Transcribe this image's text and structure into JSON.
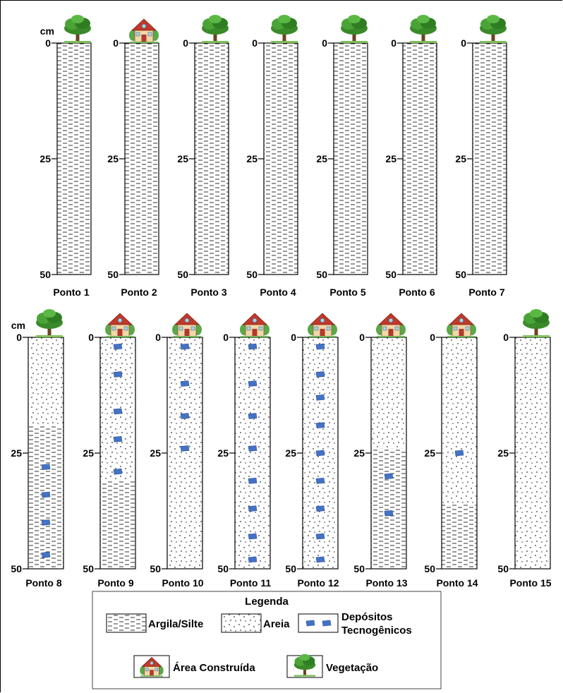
{
  "unit_label": "cm",
  "depth_ticks": [
    "0",
    "25",
    "50"
  ],
  "top_row": [
    {
      "name": "Ponto 1",
      "cover": "tree",
      "layers": [
        {
          "type": "argila",
          "from": 0,
          "to": 50
        }
      ],
      "tecno": []
    },
    {
      "name": "Ponto 2",
      "cover": "house",
      "layers": [
        {
          "type": "argila",
          "from": 0,
          "to": 50
        }
      ],
      "tecno": []
    },
    {
      "name": "Ponto 3",
      "cover": "tree",
      "layers": [
        {
          "type": "argila",
          "from": 0,
          "to": 50
        }
      ],
      "tecno": []
    },
    {
      "name": "Ponto 4",
      "cover": "tree",
      "layers": [
        {
          "type": "argila",
          "from": 0,
          "to": 50
        }
      ],
      "tecno": []
    },
    {
      "name": "Ponto 5",
      "cover": "tree",
      "layers": [
        {
          "type": "argila",
          "from": 0,
          "to": 50
        }
      ],
      "tecno": []
    },
    {
      "name": "Ponto 6",
      "cover": "tree",
      "layers": [
        {
          "type": "argila",
          "from": 0,
          "to": 50
        }
      ],
      "tecno": []
    },
    {
      "name": "Ponto 7",
      "cover": "tree",
      "layers": [
        {
          "type": "argila",
          "from": 0,
          "to": 50
        }
      ],
      "tecno": []
    }
  ],
  "bottom_row": [
    {
      "name": "Ponto 8",
      "cover": "tree",
      "layers": [
        {
          "type": "areia",
          "from": 0,
          "to": 19
        },
        {
          "type": "argila",
          "from": 19,
          "to": 50
        }
      ],
      "tecno": [
        28,
        34,
        40,
        47
      ]
    },
    {
      "name": "Ponto 9",
      "cover": "house",
      "layers": [
        {
          "type": "areia",
          "from": 0,
          "to": 31
        },
        {
          "type": "argila",
          "from": 31,
          "to": 50
        }
      ],
      "tecno": [
        2,
        8,
        16,
        22,
        29
      ]
    },
    {
      "name": "Ponto 10",
      "cover": "house",
      "layers": [
        {
          "type": "areia",
          "from": 0,
          "to": 50
        }
      ],
      "tecno": [
        2,
        10,
        17,
        24
      ]
    },
    {
      "name": "Ponto 11",
      "cover": "house",
      "layers": [
        {
          "type": "areia",
          "from": 0,
          "to": 50
        }
      ],
      "tecno": [
        2,
        10,
        17,
        24,
        31,
        37,
        43,
        48
      ]
    },
    {
      "name": "Ponto 12",
      "cover": "house",
      "layers": [
        {
          "type": "areia",
          "from": 0,
          "to": 50
        }
      ],
      "tecno": [
        2,
        8,
        13,
        19,
        25,
        31,
        37,
        43,
        48
      ]
    },
    {
      "name": "Ponto 13",
      "cover": "house",
      "layers": [
        {
          "type": "areia",
          "from": 0,
          "to": 24
        },
        {
          "type": "argila",
          "from": 24,
          "to": 50
        }
      ],
      "tecno": [
        30,
        38
      ]
    },
    {
      "name": "Ponto 14",
      "cover": "house",
      "layers": [
        {
          "type": "areia",
          "from": 0,
          "to": 36
        },
        {
          "type": "argila",
          "from": 36,
          "to": 50
        }
      ],
      "tecno": [
        25
      ]
    },
    {
      "name": "Ponto 15",
      "cover": "tree",
      "layers": [
        {
          "type": "areia",
          "from": 0,
          "to": 50
        }
      ],
      "tecno": []
    }
  ],
  "legend": {
    "title": "Legenda",
    "argila": "Argila/Silte",
    "areia": "Areia",
    "tecno_line1": "Depósitos",
    "tecno_line2": "Tecnogênicos",
    "area_construida": "Área Construída",
    "vegetacao": "Vegetação"
  },
  "colors": {
    "tecno": "#4472c4",
    "tree_green": "#3a8a2a",
    "house_roof": "#c0392b",
    "house_wall": "#f2d7a8"
  }
}
